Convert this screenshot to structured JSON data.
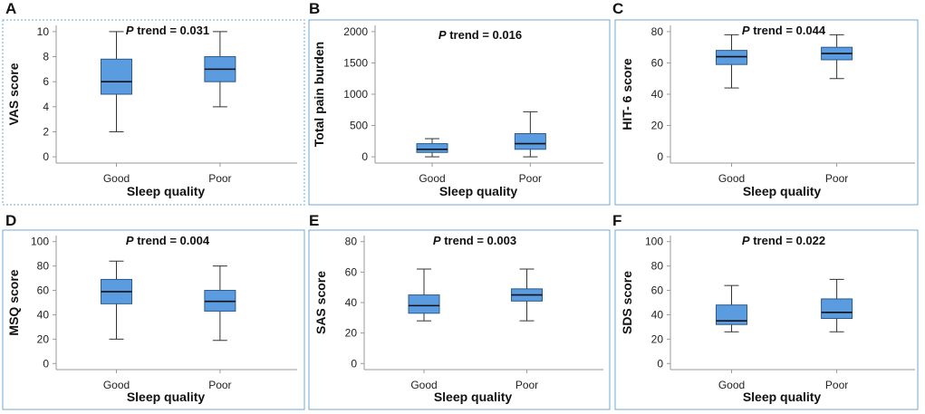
{
  "figure": {
    "box_fill": "#5b9be0",
    "box_stroke": "#2a5a8a",
    "median_color": "#111111",
    "frame_color": "#6fa8d6",
    "axis_color": "#999999"
  },
  "chart_data": [
    {
      "panel": "A",
      "type": "box",
      "title": "P trend = 0.031",
      "title_italic": "P",
      "title_rest": " trend = 0.031",
      "xlabel": "Sleep quality",
      "ylabel": "VAS score",
      "categories": [
        "Good",
        "Poor"
      ],
      "ylim": [
        -0.5,
        10.5
      ],
      "yticks": [
        "0",
        "2",
        "4",
        "6",
        "8",
        "10"
      ],
      "ytick_values": [
        0,
        2,
        4,
        6,
        8,
        10
      ],
      "boxes": [
        {
          "min": 2,
          "q1": 5,
          "median": 6,
          "q3": 7.8,
          "max": 10
        },
        {
          "min": 4,
          "q1": 6,
          "median": 7,
          "q3": 8,
          "max": 10
        }
      ]
    },
    {
      "panel": "B",
      "type": "box",
      "title": "P trend = 0.016",
      "title_italic": "P",
      "title_rest": " trend = 0.016",
      "xlabel": "Sleep quality",
      "ylabel": "Total pain burden",
      "categories": [
        "Good",
        "Poor"
      ],
      "ylim": [
        -100,
        2100
      ],
      "yticks": [
        "0",
        "500",
        "1000",
        "1500",
        "2000"
      ],
      "ytick_values": [
        0,
        500,
        1000,
        1500,
        2000
      ],
      "boxes": [
        {
          "min": 0,
          "q1": 70,
          "median": 120,
          "q3": 210,
          "max": 290
        },
        {
          "min": 0,
          "q1": 120,
          "median": 210,
          "q3": 370,
          "max": 720
        }
      ]
    },
    {
      "panel": "C",
      "type": "box",
      "title": "P trend = 0.044",
      "title_italic": "P",
      "title_rest": " trend = 0.044",
      "xlabel": "Sleep quality",
      "ylabel": "HIT- 6 score",
      "categories": [
        "Good",
        "Poor"
      ],
      "ylim": [
        -4,
        84
      ],
      "yticks": [
        "0",
        "20",
        "40",
        "60",
        "80"
      ],
      "ytick_values": [
        0,
        20,
        40,
        60,
        80
      ],
      "boxes": [
        {
          "min": 44,
          "q1": 59,
          "median": 64,
          "q3": 68,
          "max": 78
        },
        {
          "min": 50,
          "q1": 62,
          "median": 66,
          "q3": 70,
          "max": 78
        }
      ]
    },
    {
      "panel": "D",
      "type": "box",
      "title": "P trend = 0.004",
      "title_italic": "P",
      "title_rest": " trend = 0.004",
      "xlabel": "Sleep quality",
      "ylabel": "MSQ score",
      "categories": [
        "Good",
        "Poor"
      ],
      "ylim": [
        -5,
        105
      ],
      "yticks": [
        "0",
        "20",
        "40",
        "60",
        "80",
        "100"
      ],
      "ytick_values": [
        0,
        20,
        40,
        60,
        80,
        100
      ],
      "boxes": [
        {
          "min": 20,
          "q1": 49,
          "median": 59,
          "q3": 69,
          "max": 84
        },
        {
          "min": 19,
          "q1": 43,
          "median": 51,
          "q3": 60,
          "max": 80
        }
      ]
    },
    {
      "panel": "E",
      "type": "box",
      "title": "P trend = 0.003",
      "title_italic": "P",
      "title_rest": " trend = 0.003",
      "xlabel": "Sleep quality",
      "ylabel": "SAS score",
      "categories": [
        "Good",
        "Poor"
      ],
      "ylim": [
        -4,
        84
      ],
      "yticks": [
        "0",
        "20",
        "40",
        "60",
        "80"
      ],
      "ytick_values": [
        0,
        20,
        40,
        60,
        80
      ],
      "boxes": [
        {
          "min": 28,
          "q1": 33,
          "median": 38,
          "q3": 45,
          "max": 62
        },
        {
          "min": 28,
          "q1": 41,
          "median": 45,
          "q3": 49,
          "max": 62
        }
      ]
    },
    {
      "panel": "F",
      "type": "box",
      "title": "P trend = 0.022",
      "title_italic": "P",
      "title_rest": " trend = 0.022",
      "xlabel": "Sleep quality",
      "ylabel": "SDS score",
      "categories": [
        "Good",
        "Poor"
      ],
      "ylim": [
        -5,
        105
      ],
      "yticks": [
        "0",
        "20",
        "40",
        "60",
        "80",
        "100"
      ],
      "ytick_values": [
        0,
        20,
        40,
        60,
        80,
        100
      ],
      "boxes": [
        {
          "min": 26,
          "q1": 32,
          "median": 35,
          "q3": 48,
          "max": 64
        },
        {
          "min": 26,
          "q1": 37,
          "median": 42,
          "q3": 53,
          "max": 69
        }
      ]
    }
  ]
}
